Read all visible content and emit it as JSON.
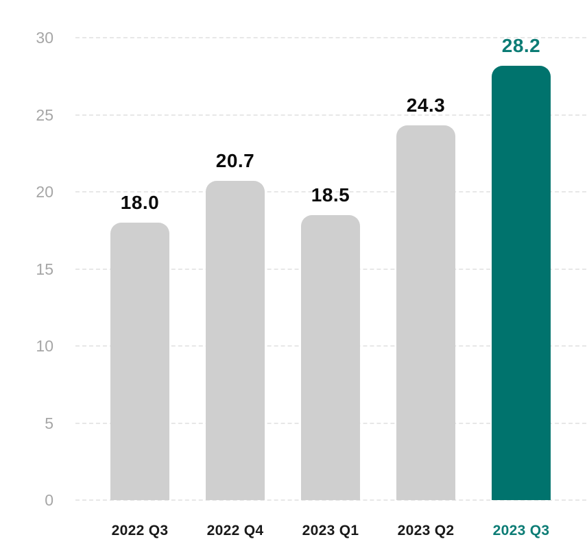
{
  "chart_data": {
    "type": "bar",
    "categories": [
      "2022 Q3",
      "2022 Q4",
      "2023 Q1",
      "2023 Q2",
      "2023 Q3"
    ],
    "values": [
      18.0,
      20.7,
      18.5,
      24.3,
      28.2
    ],
    "value_labels": [
      "18.0",
      "20.7",
      "18.5",
      "24.3",
      "28.2"
    ],
    "y_ticks": [
      "0",
      "5",
      "10",
      "15",
      "20",
      "25",
      "30"
    ],
    "y_tick_values": [
      0,
      5,
      10,
      15,
      20,
      25,
      30
    ],
    "ylim": [
      0,
      30
    ],
    "grid": "horizontal-dashed",
    "legend": "none",
    "highlight_index": 4,
    "colors": {
      "bar_default": "#cfcfcf",
      "bar_highlight": "#00736d",
      "value_label_default": "#0b0b0b",
      "value_label_highlight": "#0c7c75",
      "category_default": "#191919",
      "category_highlight": "#0c7c75",
      "axis_tick": "#a6a6a6",
      "gridline": "#e7e7e7",
      "background": "#ffffff"
    }
  }
}
